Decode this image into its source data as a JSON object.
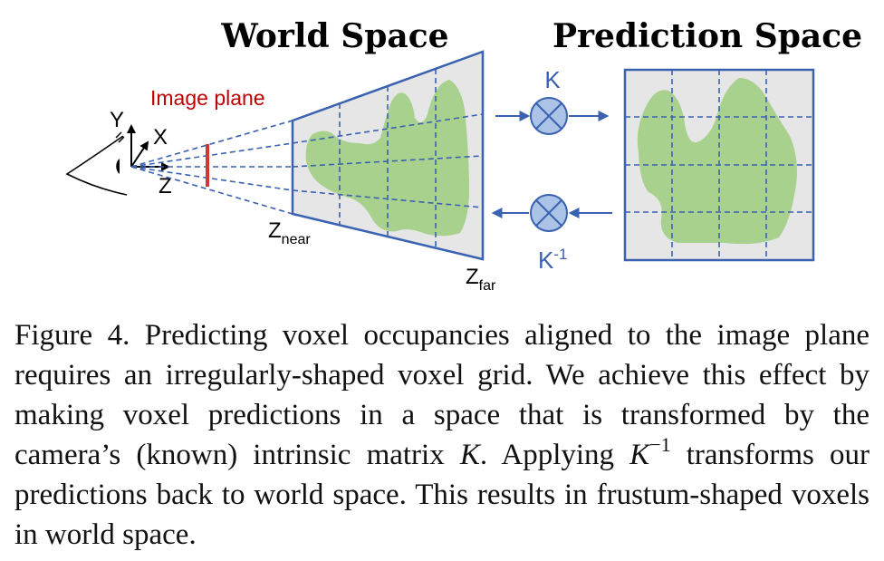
{
  "figure": {
    "title_world": "World Space",
    "title_prediction": "Prediction Space",
    "label_image_plane": "Image plane",
    "axis_y": "Y",
    "axis_x": "X",
    "axis_z": "Z",
    "z_near_base": "Z",
    "z_near_sub": "near",
    "z_far_base": "Z",
    "z_far_sub": "far",
    "op_k": "K",
    "op_kinv_base": "K",
    "op_kinv_sup": "-1",
    "colors": {
      "grid_blue": "#3a62b0",
      "ray_blue": "#3a62b0",
      "occupancy_green": "#a9d18e",
      "voxel_fill": "#e6e6e6",
      "image_plane_red": "#d1363a",
      "op_circle_fill": "#aac3e6",
      "label_red": "#c00000"
    }
  },
  "caption": {
    "prefix": "Figure 4.  Predicting voxel occupancies aligned to the image plane requires an irregularly-shaped voxel grid.  We achieve this effect by making voxel predictions in a space that is transformed by the camera’s (known) intrinsic matrix ",
    "k1": "K",
    "mid": ".  Applying ",
    "k2": "K",
    "k2_sup": "−1",
    "suffix": " transforms our predictions back to world space. This results in frustum-shaped voxels in world space."
  }
}
